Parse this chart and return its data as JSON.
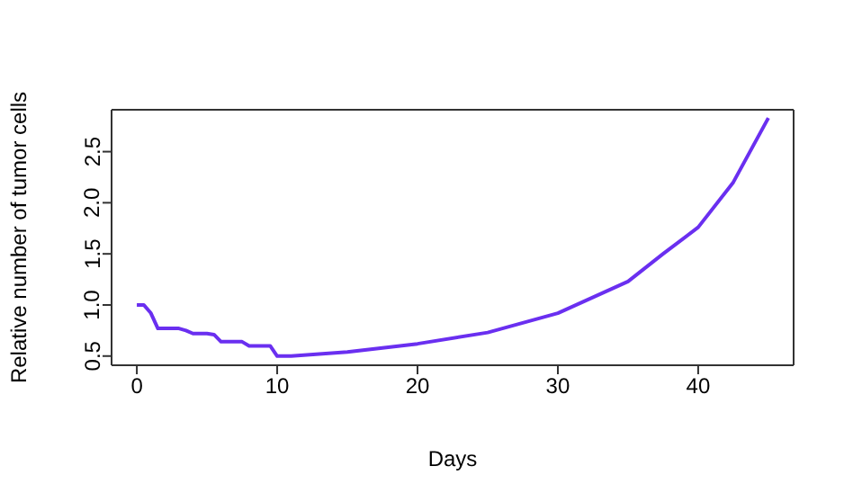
{
  "chart_data": {
    "type": "line",
    "xlabel": "Days",
    "ylabel": "Relative number of tumor cells",
    "x": [
      0,
      0.5,
      1,
      1.5,
      3,
      3.5,
      4,
      5,
      5.5,
      6,
      7.5,
      8,
      9.5,
      10,
      11,
      15,
      20,
      25,
      30,
      35,
      37.5,
      40,
      42.5,
      45
    ],
    "series": [
      {
        "color": "#6a2ff0",
        "values": [
          1.0,
          1.0,
          0.92,
          0.77,
          0.77,
          0.75,
          0.72,
          0.72,
          0.71,
          0.64,
          0.64,
          0.6,
          0.6,
          0.5,
          0.5,
          0.54,
          0.62,
          0.73,
          0.92,
          1.23,
          1.5,
          1.76,
          2.2,
          2.83
        ]
      }
    ],
    "xlim": [
      -1.8,
      46.8
    ],
    "xticks": [
      0,
      10,
      20,
      30,
      40
    ],
    "ylim": [
      0.41,
      2.91
    ],
    "yticks": [
      0.5,
      {
        "value": 1,
        "label": "1.0"
      },
      1.5,
      {
        "value": 2,
        "label": "2.0"
      },
      2.5
    ],
    "grid": false,
    "legend": false,
    "marker": "none",
    "line_style": "solid"
  }
}
